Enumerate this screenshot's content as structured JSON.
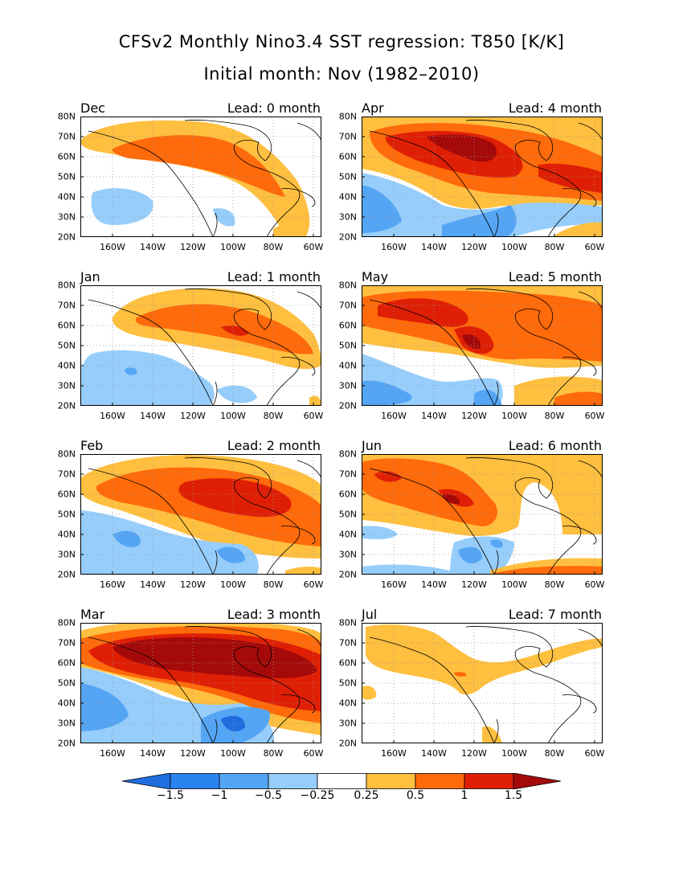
{
  "title_line1": "CFSv2 Monthly Nino3.4 SST regression: T850 [K/K]",
  "title_line2": "Initial month: Nov (1982–2010)",
  "lat_labels": [
    "80N",
    "70N",
    "60N",
    "50N",
    "40N",
    "30N",
    "20N"
  ],
  "lon_labels": [
    "160W",
    "140W",
    "120W",
    "100W",
    "80W",
    "60W"
  ],
  "panels": [
    {
      "month": "Dec",
      "lead": "Lead: 0 month"
    },
    {
      "month": "Apr",
      "lead": "Lead: 4 month"
    },
    {
      "month": "Jan",
      "lead": "Lead: 1 month"
    },
    {
      "month": "May",
      "lead": "Lead: 5 month"
    },
    {
      "month": "Feb",
      "lead": "Lead: 2 month"
    },
    {
      "month": "Jun",
      "lead": "Lead: 6 month"
    },
    {
      "month": "Mar",
      "lead": "Lead: 3 month"
    },
    {
      "month": "Jul",
      "lead": "Lead: 7 month"
    }
  ],
  "colorbar": {
    "labels": [
      "−1.5",
      "−1",
      "−0.5",
      "−0.25",
      "0.25",
      "0.5",
      "1",
      "1.5"
    ],
    "colors": [
      "#1e6ee0",
      "#2a84f0",
      "#55a5f5",
      "#96cdfa",
      "#ffffff",
      "#ffbf3f",
      "#ff6a0a",
      "#df1f05",
      "#a50a0a"
    ]
  },
  "colors": {
    "neg_strong": "#1e6ee0",
    "neg_mid": "#55a5f5",
    "neg_light": "#96cdfa",
    "pos_light": "#ffbf3f",
    "pos_mid": "#ff6a0a",
    "pos_strong": "#df1f05",
    "pos_max": "#a50a0a"
  }
}
